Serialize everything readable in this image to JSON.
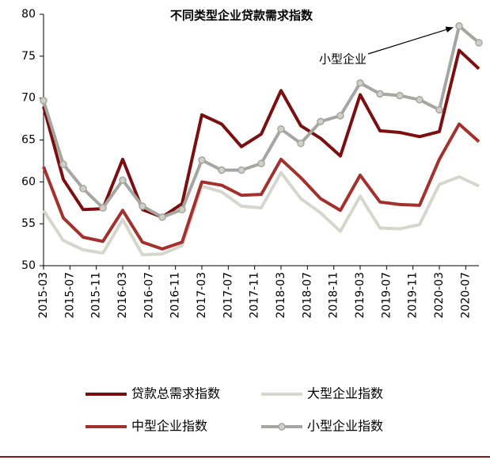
{
  "chart_data": {
    "type": "line",
    "title": "不同类型企业贷款需求指数",
    "x": [
      "2015-03",
      "2015-06",
      "2015-09",
      "2015-12",
      "2016-03",
      "2016-06",
      "2016-09",
      "2016-12",
      "2017-03",
      "2017-06",
      "2017-09",
      "2017-12",
      "2018-03",
      "2018-06",
      "2018-09",
      "2018-12",
      "2019-03",
      "2019-06",
      "2019-09",
      "2019-12",
      "2020-03",
      "2020-06",
      "2020-09"
    ],
    "xlim": [
      "2015-03",
      "2020-09"
    ],
    "xticks": [
      "2015-03",
      "2015-07",
      "2015-11",
      "2016-03",
      "2016-07",
      "2016-11",
      "2017-03",
      "2017-07",
      "2017-11",
      "2018-03",
      "2018-07",
      "2018-11",
      "2019-03",
      "2019-07",
      "2019-11",
      "2020-03",
      "2020-07"
    ],
    "ylim": [
      50,
      80
    ],
    "yticks": [
      50,
      55,
      60,
      65,
      70,
      75,
      80
    ],
    "series": [
      {
        "name": "贷款总需求指数",
        "color": "#7b0f10",
        "markers": false,
        "values": [
          69,
          60.3,
          56.7,
          56.8,
          62.7,
          56.7,
          55.8,
          57.4,
          68,
          66.9,
          64.2,
          65.7,
          70.9,
          66.7,
          65.2,
          63.1,
          70.4,
          66.1,
          65.9,
          65.4,
          66,
          75.7,
          73.5
        ]
      },
      {
        "name": "大型企业指数",
        "color": "#d6d6cc",
        "markers": false,
        "values": [
          56.6,
          53,
          51.9,
          51.5,
          55.5,
          51.3,
          51.4,
          52.4,
          59.5,
          58.8,
          57.1,
          56.9,
          61.1,
          58,
          56.3,
          54.1,
          58.3,
          54.5,
          54.4,
          54.9,
          59.7,
          60.6,
          59.5
        ]
      },
      {
        "name": "中型企业指数",
        "color": "#a4302e",
        "markers": false,
        "values": [
          61.8,
          55.7,
          53.4,
          52.9,
          56.6,
          52.8,
          52,
          52.8,
          60,
          59.6,
          58.4,
          58.5,
          62.7,
          60.5,
          58,
          56.6,
          60.8,
          57.6,
          57.3,
          57.2,
          62.7,
          66.9,
          64.8
        ]
      },
      {
        "name": "小型企业指数",
        "color": "#a6a6a0",
        "markers": true,
        "values": [
          69.7,
          62.1,
          59.2,
          56.9,
          60.2,
          57.1,
          55.8,
          56.7,
          62.6,
          61.4,
          61.4,
          62.2,
          66.3,
          64.6,
          67.2,
          67.9,
          71.8,
          70.5,
          70.3,
          69.8,
          68.6,
          78.6,
          76.6
        ]
      }
    ],
    "annotation": {
      "text": "小型企业",
      "series": 3,
      "index": 21
    },
    "legend": "bottom"
  }
}
